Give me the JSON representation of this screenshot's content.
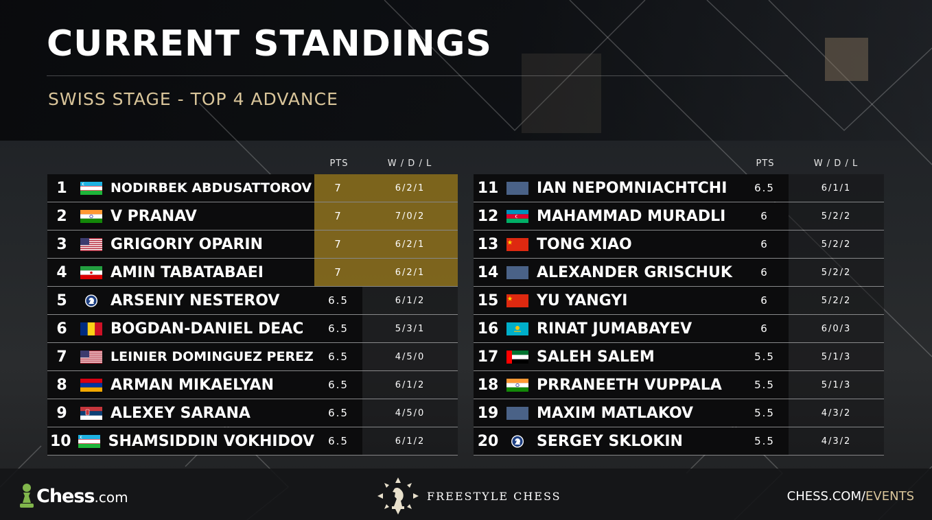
{
  "title": "CURRENT STANDINGS",
  "subtitle": "SWISS STAGE - TOP 4 ADVANCE",
  "columns": {
    "pts": "PTS",
    "wdl": "W / D / L"
  },
  "colors": {
    "accent": "#d9c59a",
    "advance_highlight": "#967619",
    "row_bg": "#0c0c0d"
  },
  "left_table": [
    {
      "rank": "1",
      "flag": "uzbekistan-flag",
      "name": "NODIRBEK ABDUSATTOROV",
      "pts": "7",
      "wdl": "6/2/1",
      "advances": true
    },
    {
      "rank": "2",
      "flag": "india-flag",
      "name": "V PRANAV",
      "pts": "7",
      "wdl": "7/0/2",
      "advances": true
    },
    {
      "rank": "3",
      "flag": "usa-flag",
      "name": "GRIGORIY OPARIN",
      "pts": "7",
      "wdl": "6/2/1",
      "advances": true
    },
    {
      "rank": "4",
      "flag": "iran-flag",
      "name": "AMIN TABATABAEI",
      "pts": "7",
      "wdl": "6/2/1",
      "advances": true
    },
    {
      "rank": "5",
      "flag": "fide-flag",
      "name": "ARSENIY NESTEROV",
      "pts": "6.5",
      "wdl": "6/1/2",
      "advances": false
    },
    {
      "rank": "6",
      "flag": "romania-flag",
      "name": "BOGDAN-DANIEL DEAC",
      "pts": "6.5",
      "wdl": "5/3/1",
      "advances": false
    },
    {
      "rank": "7",
      "flag": "usa-flag",
      "name": "LEINIER DOMINGUEZ PEREZ",
      "pts": "6.5",
      "wdl": "4/5/0",
      "advances": false
    },
    {
      "rank": "8",
      "flag": "armenia-flag",
      "name": "ARMAN MIKAELYAN",
      "pts": "6.5",
      "wdl": "6/1/2",
      "advances": false
    },
    {
      "rank": "9",
      "flag": "serbia-flag",
      "name": "ALEXEY SARANA",
      "pts": "6.5",
      "wdl": "4/5/0",
      "advances": false
    },
    {
      "rank": "10",
      "flag": "uzbekistan-flag",
      "name": "SHAMSIDDIN VOKHIDOV",
      "pts": "6.5",
      "wdl": "6/1/2",
      "advances": false
    }
  ],
  "right_table": [
    {
      "rank": "11",
      "flag": "blank-flag",
      "name": "IAN NEPOMNIACHTCHI",
      "pts": "6.5",
      "wdl": "6/1/1",
      "advances": false
    },
    {
      "rank": "12",
      "flag": "azerbaijan-flag",
      "name": "MAHAMMAD MURADLI",
      "pts": "6",
      "wdl": "5/2/2",
      "advances": false
    },
    {
      "rank": "13",
      "flag": "china-flag",
      "name": "TONG XIAO",
      "pts": "6",
      "wdl": "5/2/2",
      "advances": false
    },
    {
      "rank": "14",
      "flag": "blank-flag",
      "name": "ALEXANDER GRISCHUK",
      "pts": "6",
      "wdl": "5/2/2",
      "advances": false
    },
    {
      "rank": "15",
      "flag": "china-flag",
      "name": "YU YANGYI",
      "pts": "6",
      "wdl": "5/2/2",
      "advances": false
    },
    {
      "rank": "16",
      "flag": "kazakhstan-flag",
      "name": "RINAT JUMABAYEV",
      "pts": "6",
      "wdl": "6/0/3",
      "advances": false
    },
    {
      "rank": "17",
      "flag": "uae-flag",
      "name": "SALEH SALEM",
      "pts": "5.5",
      "wdl": "5/1/3",
      "advances": false
    },
    {
      "rank": "18",
      "flag": "india-flag",
      "name": "PRRANEETH VUPPALA",
      "pts": "5.5",
      "wdl": "5/1/3",
      "advances": false
    },
    {
      "rank": "19",
      "flag": "blank-flag",
      "name": "MAXIM MATLAKOV",
      "pts": "5.5",
      "wdl": "4/3/2",
      "advances": false
    },
    {
      "rank": "20",
      "flag": "fide-flag",
      "name": "SERGEY SKLOKIN",
      "pts": "5.5",
      "wdl": "4/3/2",
      "advances": false
    }
  ],
  "footer": {
    "chess_logo_main": "Chess",
    "chess_logo_suffix": ".com",
    "freestyle_label": "FREESTYLE CHESS",
    "events_prefix": "CHESS.COM/",
    "events_suffix": "EVENTS"
  }
}
